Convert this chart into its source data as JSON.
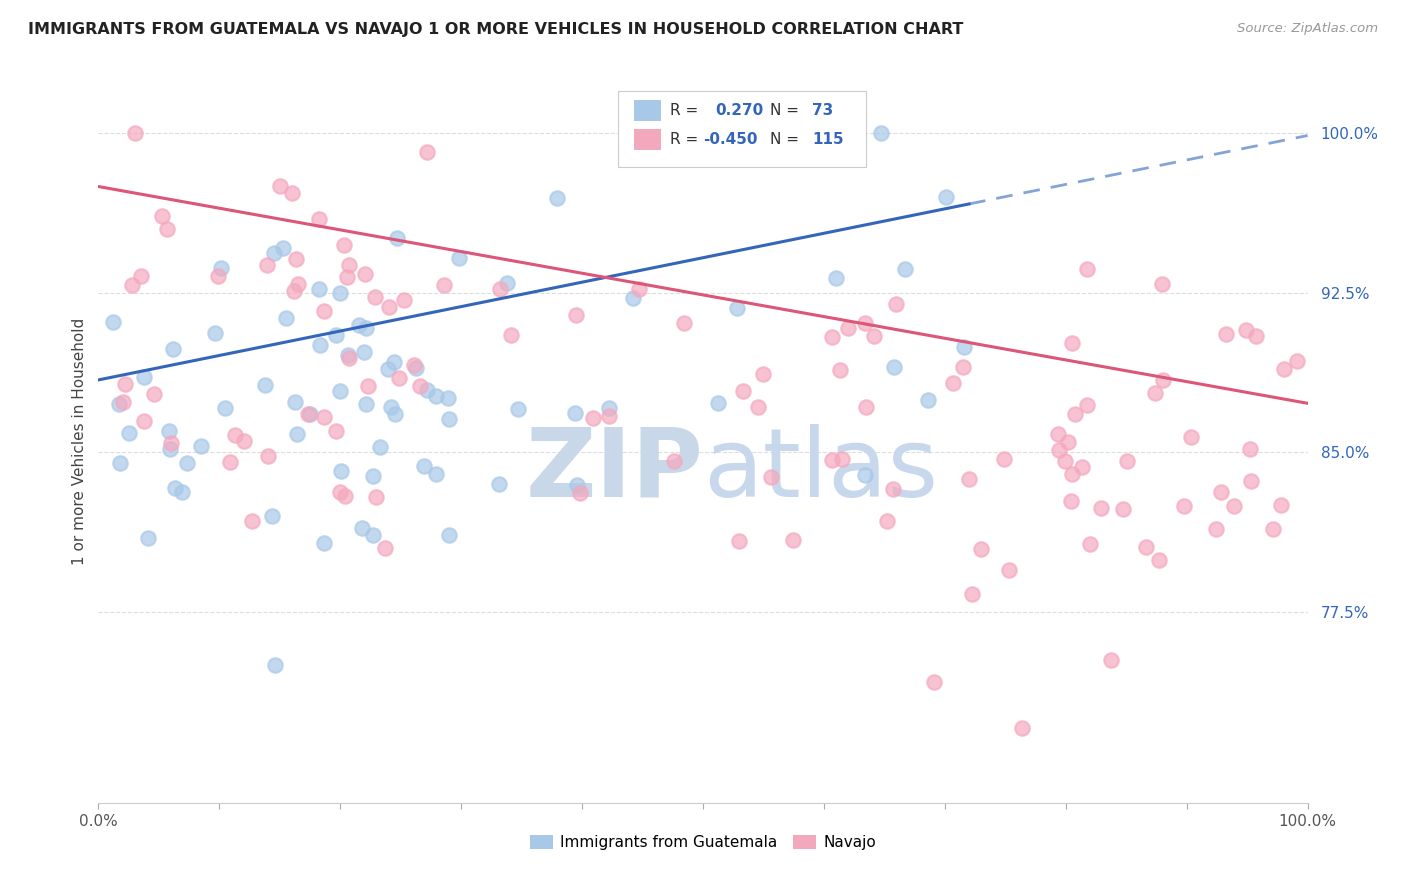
{
  "title": "IMMIGRANTS FROM GUATEMALA VS NAVAJO 1 OR MORE VEHICLES IN HOUSEHOLD CORRELATION CHART",
  "source": "Source: ZipAtlas.com",
  "ylabel": "1 or more Vehicles in Household",
  "ytick_labels": [
    "100.0%",
    "92.5%",
    "85.0%",
    "77.5%"
  ],
  "ytick_values": [
    1.0,
    0.925,
    0.85,
    0.775
  ],
  "xlim": [
    0.0,
    1.0
  ],
  "ylim": [
    0.685,
    1.025
  ],
  "legend_label_blue": "Immigrants from Guatemala",
  "legend_label_pink": "Navajo",
  "blue_color": "#a8c8e8",
  "pink_color": "#f4a8be",
  "blue_line_color": "#3366bb",
  "pink_line_color": "#dd5577",
  "blue_legend_color": "#a8c8e8",
  "pink_legend_color": "#f4a8be",
  "text_r_color": "#3366bb",
  "watermark_zip": "ZIP",
  "watermark_atlas": "atlas",
  "watermark_color": "#ccd9e8",
  "background_color": "#ffffff",
  "grid_color": "#dddddd",
  "title_color": "#222222",
  "source_color": "#999999",
  "ylabel_color": "#444444",
  "xtick_color": "#555555",
  "ytick_color": "#3366bb"
}
